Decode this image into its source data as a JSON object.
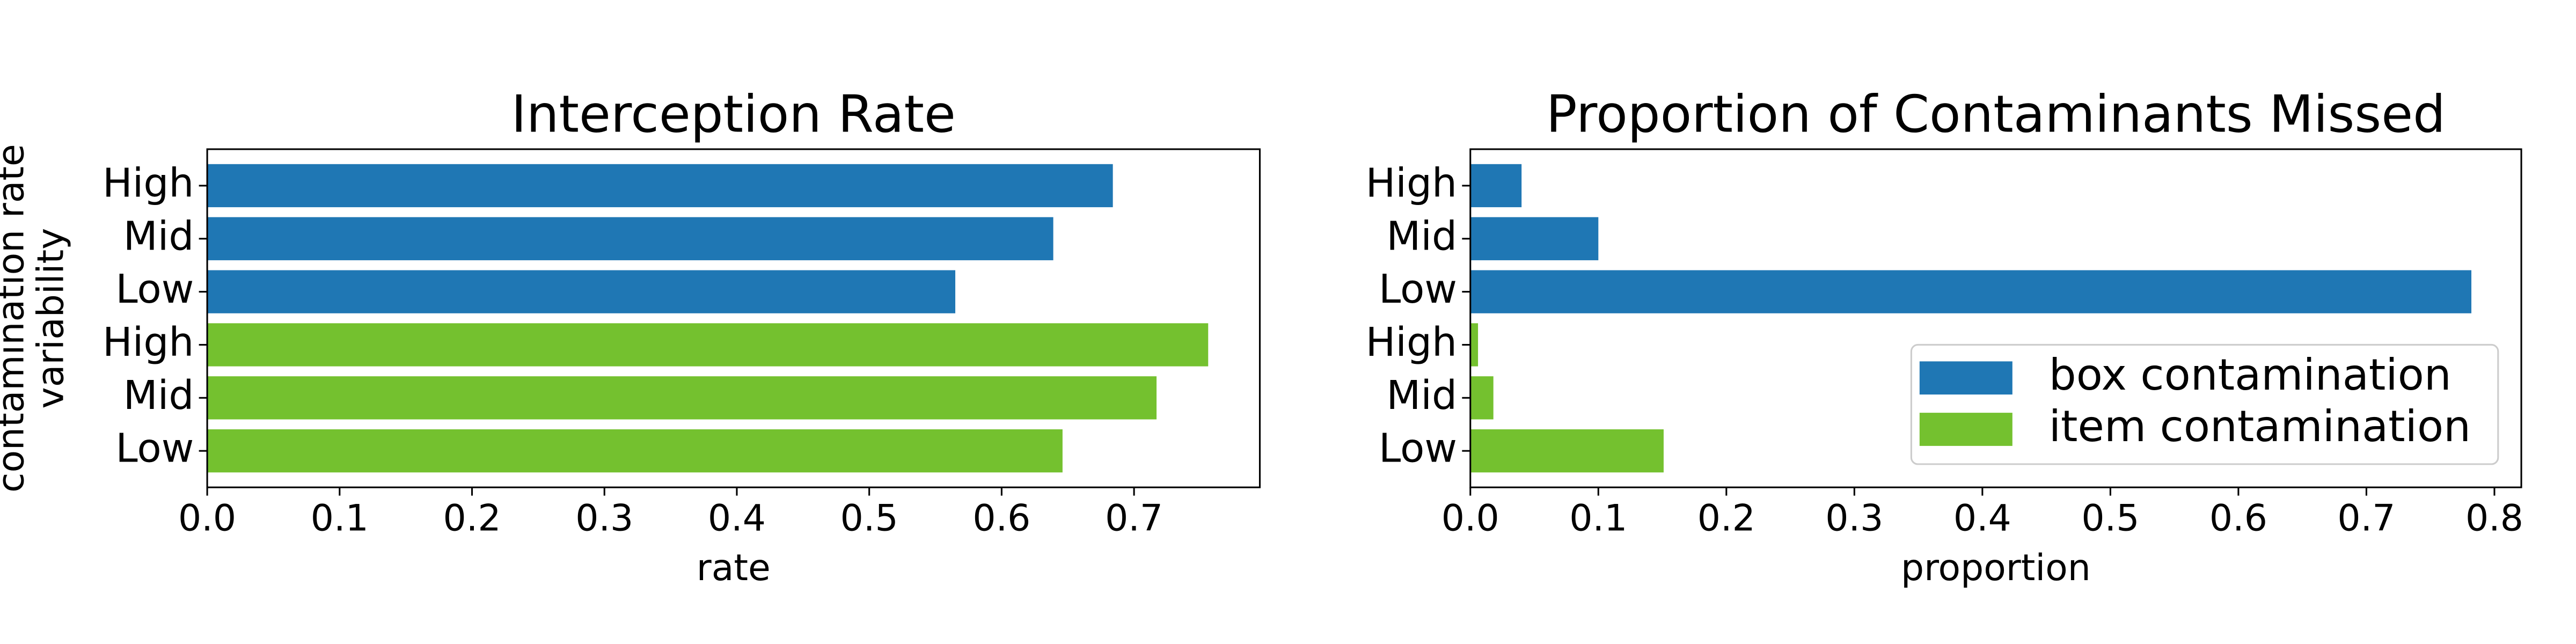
{
  "chart_data": [
    {
      "type": "barh",
      "title": "Interception Rate",
      "xlabel": "rate",
      "ylabel": [
        "contamination rate",
        "variability"
      ],
      "categories": [
        "High",
        "Mid",
        "Low"
      ],
      "series": [
        {
          "color": "#1f77b4",
          "values": [
            0.684,
            0.639,
            0.565
          ]
        },
        {
          "color": "#74c12f",
          "values": [
            0.756,
            0.717,
            0.646
          ]
        }
      ],
      "xlim": [
        0,
        0.795
      ],
      "xticks": [
        {
          "value": 0,
          "label": "0.0"
        },
        0.1,
        0.2,
        0.3,
        0.4,
        0.5,
        0.6,
        0.7
      ]
    },
    {
      "type": "barh",
      "title": "Proportion of Contaminants Missed",
      "xlabel": "proportion",
      "categories": [
        "High",
        "Mid",
        "Low"
      ],
      "series": [
        {
          "name": "box contamination",
          "color": "#1f77b4",
          "values": [
            0.04,
            0.1,
            0.782
          ]
        },
        {
          "name": "item contamination",
          "color": "#74c12f",
          "values": [
            0.006,
            0.018,
            0.151
          ]
        }
      ],
      "xlim": [
        0,
        0.821
      ],
      "xticks": [
        {
          "value": 0,
          "label": "0.0"
        },
        0.1,
        0.2,
        0.3,
        0.4,
        0.5,
        0.6,
        0.7,
        0.8
      ],
      "legend": "lower right"
    }
  ]
}
